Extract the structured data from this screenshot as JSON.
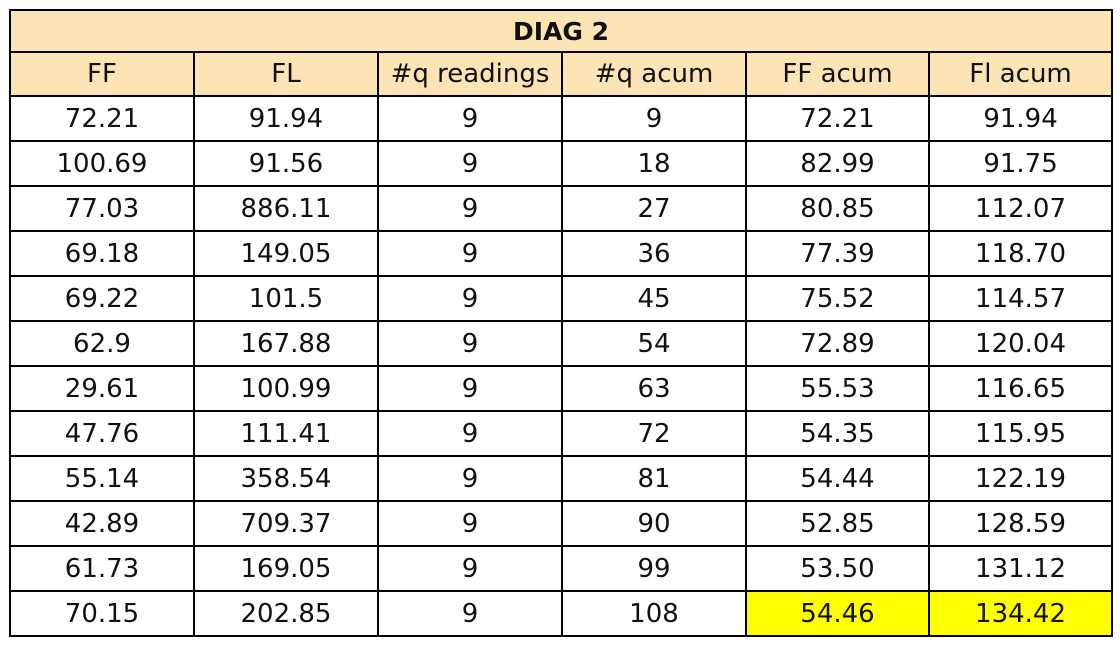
{
  "table": {
    "title": "DIAG 2",
    "headers": [
      "FF",
      "FL",
      "#q readings",
      "#q acum",
      "FF acum",
      "Fl acum"
    ],
    "rows": [
      [
        "72.21",
        "91.94",
        "9",
        "9",
        "72.21",
        "91.94"
      ],
      [
        "100.69",
        "91.56",
        "9",
        "18",
        "82.99",
        "91.75"
      ],
      [
        "77.03",
        "886.11",
        "9",
        "27",
        "80.85",
        "112.07"
      ],
      [
        "69.18",
        "149.05",
        "9",
        "36",
        "77.39",
        "118.70"
      ],
      [
        "69.22",
        "101.5",
        "9",
        "45",
        "75.52",
        "114.57"
      ],
      [
        "62.9",
        "167.88",
        "9",
        "54",
        "72.89",
        "120.04"
      ],
      [
        "29.61",
        "100.99",
        "9",
        "63",
        "55.53",
        "116.65"
      ],
      [
        "47.76",
        "111.41",
        "9",
        "72",
        "54.35",
        "115.95"
      ],
      [
        "55.14",
        "358.54",
        "9",
        "81",
        "54.44",
        "122.19"
      ],
      [
        "42.89",
        "709.37",
        "9",
        "90",
        "52.85",
        "128.59"
      ],
      [
        "61.73",
        "169.05",
        "9",
        "99",
        "53.50",
        "131.12"
      ],
      [
        "70.15",
        "202.85",
        "9",
        "108",
        "54.46",
        "134.42"
      ]
    ],
    "highlight_color": "#ffff00",
    "header_color": "#fce4b4"
  }
}
